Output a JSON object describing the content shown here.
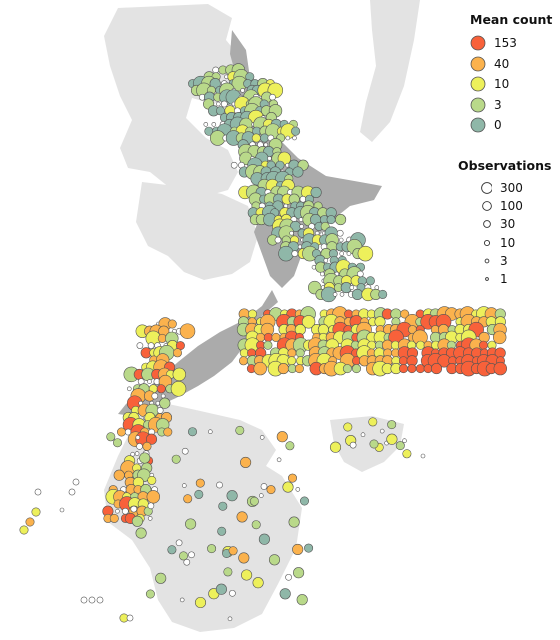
{
  "colors": {
    "land_back": "#e3e3e3",
    "land_front": "#ababab",
    "sea": "#ffffff",
    "stroke": "#555555"
  },
  "legend_mean": {
    "title": "Mean count",
    "items": [
      {
        "label": "153",
        "color": "#f8613a"
      },
      {
        "label": "40",
        "color": "#fbb24d"
      },
      {
        "label": "10",
        "color": "#edf05b"
      },
      {
        "label": "3",
        "color": "#b9d98a"
      },
      {
        "label": "0",
        "color": "#8fb7a8"
      }
    ]
  },
  "legend_obs": {
    "title": "Observations",
    "items": [
      {
        "label": "300",
        "value": 300
      },
      {
        "label": "100",
        "value": 100
      },
      {
        "label": "30",
        "value": 30
      },
      {
        "label": "10",
        "value": 10
      },
      {
        "label": "3",
        "value": 3
      },
      {
        "label": "1",
        "value": 1
      }
    ]
  },
  "cell_data": {
    "type": "gridded-bubble-map",
    "color_scale": [
      "0",
      "3",
      "10",
      "40",
      "153"
    ],
    "note_levels": "c: 0=0,1=3,2=10,3=40,4=153 ; o: observation count",
    "cells": [
      {
        "c": 0,
        "o": 3,
        "g": "n1"
      },
      {
        "c": 0,
        "o": 10,
        "g": "n2"
      },
      {
        "c": 1,
        "o": 30,
        "g": "n3"
      },
      {
        "c": 0,
        "o": 100,
        "g": "n4"
      },
      {
        "c": 1,
        "o": 10,
        "g": "n5"
      },
      {
        "c": 0,
        "o": 30,
        "g": "n6"
      },
      {
        "c": 1,
        "o": 100,
        "g": "n7"
      },
      {
        "c": 0,
        "o": 300,
        "g": "n8"
      },
      {
        "c": 2,
        "o": 10,
        "g": "e1"
      },
      {
        "c": 3,
        "o": 30,
        "g": "e2"
      },
      {
        "c": 4,
        "o": 30,
        "g": "e3"
      },
      {
        "c": 2,
        "o": 100,
        "g": "e4"
      },
      {
        "c": 3,
        "o": 100,
        "g": "e5"
      },
      {
        "c": 4,
        "o": 100,
        "g": "e6"
      },
      {
        "c": 2,
        "o": 300,
        "g": "w1"
      },
      {
        "c": 3,
        "o": 100,
        "g": "w2"
      },
      {
        "c": 2,
        "o": 30,
        "g": "s1"
      },
      {
        "c": 1,
        "o": 10,
        "g": "s2"
      },
      {
        "c": 3,
        "o": 30,
        "g": "s3"
      },
      {
        "c": 2,
        "o": 3,
        "g": "s4"
      }
    ]
  }
}
